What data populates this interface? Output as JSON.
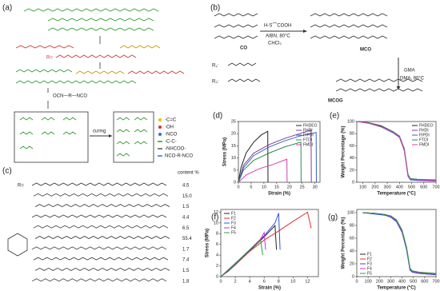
{
  "panel_a": {
    "label": "(a)",
    "r_label": "R=",
    "reagent": "OCN—R—NCO",
    "step": "curing",
    "legend": [
      "-C=C",
      "-OH",
      "-NCO",
      "-C-C-",
      "-NHCOO-",
      "NCO-R-NCO"
    ]
  },
  "panel_b": {
    "label": "(b)",
    "thiol": "H-S⌒COOH",
    "cond1": "AIBN, 80°C",
    "cond1b": "CHCl₃",
    "co": "CO",
    "mco": "MCO",
    "gma": "GMA",
    "cond2": "DMA, 90°C",
    "mcog": "MCOG",
    "r1": "R₁:",
    "r2": "R₂:"
  },
  "panel_c": {
    "label": "(c)",
    "r_label": "R=",
    "header": "content %",
    "contents": [
      "4.5",
      "15.0",
      "1.5",
      "4.4",
      "6.5",
      "55.4",
      "1.7",
      "7.4",
      "1.5",
      "1.8"
    ]
  },
  "chart_data": [
    {
      "type": "line",
      "label": "(d)",
      "x_label": "Strain (%)",
      "y_label": "Stress (MPa)",
      "xlim": [
        0,
        32
      ],
      "ylim": [
        0,
        25
      ],
      "xticks": [
        0,
        5,
        10,
        15,
        20,
        25,
        30
      ],
      "yticks": [
        0,
        5,
        10,
        15,
        20,
        25
      ],
      "series": [
        {
          "name": "FHDEO",
          "color": "#222222",
          "x": [
            0,
            1,
            3,
            6,
            9,
            11.5,
            11.6
          ],
          "values": [
            0,
            6,
            12,
            16.5,
            19.5,
            21,
            0
          ]
        },
        {
          "name": "FHDI",
          "color": "#7b3f8f",
          "x": [
            0,
            2,
            6,
            12,
            18,
            24,
            28.5,
            28.6
          ],
          "values": [
            0,
            7,
            12,
            15.5,
            18,
            20,
            21.5,
            0
          ]
        },
        {
          "name": "FIPDI",
          "color": "#3a5fcd",
          "x": [
            0,
            2,
            6,
            12,
            18,
            24,
            30.5,
            30.6
          ],
          "values": [
            0,
            6,
            11,
            14.5,
            17,
            19,
            20.5,
            0
          ]
        },
        {
          "name": "FTDI",
          "color": "#2e8b57",
          "x": [
            0,
            2,
            6,
            12,
            18,
            24.5,
            24.6
          ],
          "values": [
            0,
            5,
            9,
            12,
            14.5,
            16.5,
            0
          ]
        },
        {
          "name": "FMDI",
          "color": "#d63fb0",
          "x": [
            0,
            3,
            8,
            14,
            19,
            19.1
          ],
          "values": [
            0,
            3,
            5.5,
            7.5,
            9.5,
            0
          ]
        }
      ]
    },
    {
      "type": "line",
      "label": "(e)",
      "x_label": "Temperature (°C)",
      "y_label": "Weight Percentage (%)",
      "xlim": [
        50,
        700
      ],
      "ylim": [
        0,
        100
      ],
      "xticks": [
        100,
        200,
        300,
        400,
        500,
        600,
        700
      ],
      "yticks": [
        0,
        20,
        40,
        60,
        80,
        100
      ],
      "series": [
        {
          "name": "FHDEO",
          "color": "#222222",
          "x": [
            50,
            150,
            250,
            300,
            350,
            400,
            440,
            470,
            490,
            550,
            700
          ],
          "values": [
            100,
            98,
            93,
            88,
            83,
            76,
            55,
            12,
            5,
            4,
            3
          ]
        },
        {
          "name": "FHDI",
          "color": "#7b3f8f",
          "x": [
            50,
            150,
            250,
            300,
            350,
            400,
            440,
            470,
            490,
            550,
            700
          ],
          "values": [
            100,
            98,
            92,
            87,
            82,
            75,
            53,
            11,
            5,
            4,
            3
          ]
        },
        {
          "name": "FIPDI",
          "color": "#3a5fcd",
          "x": [
            50,
            150,
            250,
            300,
            350,
            400,
            440,
            470,
            490,
            550,
            700
          ],
          "values": [
            100,
            97,
            91,
            86,
            81,
            74,
            52,
            10,
            4,
            3,
            2
          ]
        },
        {
          "name": "FTDI",
          "color": "#2e8b57",
          "x": [
            50,
            150,
            250,
            300,
            350,
            400,
            440,
            470,
            490,
            550,
            700
          ],
          "values": [
            100,
            98,
            92,
            88,
            83,
            76,
            54,
            13,
            6,
            5,
            4
          ]
        },
        {
          "name": "FMDI",
          "color": "#d63fb0",
          "x": [
            50,
            150,
            250,
            300,
            350,
            400,
            440,
            470,
            490,
            550,
            700
          ],
          "values": [
            100,
            97,
            91,
            87,
            82,
            75,
            52,
            12,
            5,
            4,
            3
          ]
        }
      ]
    },
    {
      "type": "line",
      "label": "(f)",
      "x_label": "Strain (%)",
      "y_label": "Stress (MPa)",
      "xlim": [
        0,
        13.5
      ],
      "ylim": [
        0,
        12.5
      ],
      "xticks": [
        0,
        2,
        4,
        6,
        8,
        10,
        12
      ],
      "yticks": [
        0,
        2,
        4,
        6,
        8,
        10,
        12
      ],
      "series": [
        {
          "name": "F1",
          "color": "#222222",
          "x": [
            0,
            1,
            2,
            4,
            6,
            7.5,
            7.7
          ],
          "values": [
            0,
            1,
            2.2,
            4.8,
            7.4,
            9.5,
            5
          ]
        },
        {
          "name": "F2",
          "color": "#e03030",
          "x": [
            0,
            2,
            4,
            6,
            8,
            10,
            12,
            12.5
          ],
          "values": [
            0,
            2.2,
            4.7,
            6.8,
            8.5,
            10.3,
            12,
            9
          ]
        },
        {
          "name": "F3",
          "color": "#3050e0",
          "x": [
            0,
            2,
            4,
            6,
            7.5,
            8,
            8.2
          ],
          "values": [
            0,
            2.3,
            4.9,
            7.6,
            10,
            11.8,
            5
          ]
        },
        {
          "name": "F4",
          "color": "#d030d0",
          "x": [
            0,
            2,
            4,
            5.5,
            6,
            6.2
          ],
          "values": [
            0,
            2.5,
            5,
            7,
            8.2,
            5
          ]
        },
        {
          "name": "F5",
          "color": "#20a040",
          "x": [
            0,
            2,
            4,
            5.5,
            5.8
          ],
          "values": [
            0,
            2.4,
            5,
            6.8,
            4
          ]
        }
      ]
    },
    {
      "type": "line",
      "label": "(g)",
      "x_label": "Temperature (°C)",
      "y_label": "Weight Percentage (%)",
      "xlim": [
        0,
        700
      ],
      "ylim": [
        0,
        105
      ],
      "xticks": [
        0,
        100,
        200,
        300,
        400,
        500,
        600,
        700
      ],
      "yticks": [
        0,
        20,
        40,
        60,
        80,
        100
      ],
      "series": [
        {
          "name": "F1",
          "color": "#222222",
          "x": [
            50,
            150,
            250,
            300,
            350,
            400,
            440,
            470,
            490,
            550,
            700
          ],
          "values": [
            100,
            99,
            97,
            94,
            88,
            72,
            45,
            12,
            8,
            6,
            4
          ]
        },
        {
          "name": "F2",
          "color": "#e03030",
          "x": [
            50,
            150,
            250,
            300,
            350,
            400,
            440,
            470,
            490,
            550,
            700
          ],
          "values": [
            100,
            99,
            96,
            93,
            87,
            70,
            43,
            11,
            7,
            5,
            3
          ]
        },
        {
          "name": "F3",
          "color": "#3050e0",
          "x": [
            50,
            150,
            250,
            300,
            350,
            400,
            440,
            470,
            490,
            550,
            700
          ],
          "values": [
            100,
            98,
            96,
            93,
            86,
            69,
            42,
            10,
            7,
            5,
            3
          ]
        },
        {
          "name": "F4",
          "color": "#d030d0",
          "x": [
            50,
            150,
            250,
            300,
            350,
            400,
            440,
            470,
            490,
            550,
            700
          ],
          "values": [
            100,
            99,
            97,
            94,
            88,
            71,
            44,
            12,
            8,
            6,
            4
          ]
        },
        {
          "name": "F5",
          "color": "#20a040",
          "x": [
            50,
            150,
            250,
            300,
            350,
            400,
            440,
            470,
            490,
            550,
            700
          ],
          "values": [
            100,
            99,
            97,
            95,
            89,
            73,
            46,
            13,
            9,
            7,
            5
          ]
        }
      ]
    }
  ]
}
